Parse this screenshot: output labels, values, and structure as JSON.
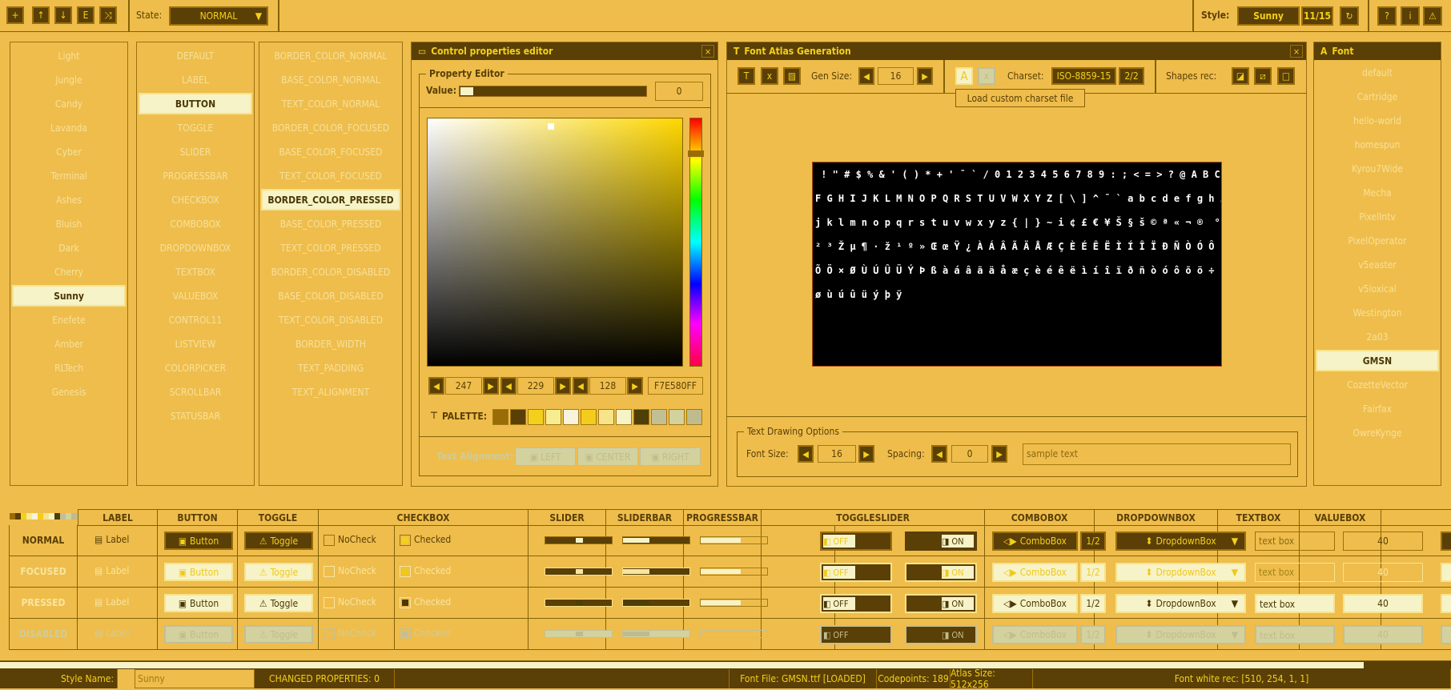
{
  "toolbar": {
    "icons": [
      "new-file-icon",
      "load-file-icon",
      "save-file-icon",
      "export-file-icon",
      "random-icon"
    ],
    "state_label": "State:",
    "state_value": "NORMAL",
    "style_label": "Style:",
    "style_value": "Sunny",
    "style_index": "11/15",
    "right_icons": [
      "help-icon",
      "info-icon",
      "warning-icon"
    ]
  },
  "styles": {
    "items": [
      "Light",
      "Jungle",
      "Candy",
      "Lavanda",
      "Cyber",
      "Terminal",
      "Ashes",
      "Bluish",
      "Dark",
      "Cherry",
      "Sunny",
      "Enefete",
      "Amber",
      "RLTech",
      "Genesis"
    ],
    "selected": 10
  },
  "controls": {
    "items": [
      "DEFAULT",
      "LABEL",
      "BUTTON",
      "TOGGLE",
      "SLIDER",
      "PROGRESSBAR",
      "CHECKBOX",
      "COMBOBOX",
      "DROPDOWNBOX",
      "TEXTBOX",
      "VALUEBOX",
      "CONTROL11",
      "LISTVIEW",
      "COLORPICKER",
      "SCROLLBAR",
      "STATUSBAR"
    ],
    "selected": 2
  },
  "properties": {
    "items": [
      "BORDER_COLOR_NORMAL",
      "BASE_COLOR_NORMAL",
      "TEXT_COLOR_NORMAL",
      "BORDER_COLOR_FOCUSED",
      "BASE_COLOR_FOCUSED",
      "TEXT_COLOR_FOCUSED",
      "BORDER_COLOR_PRESSED",
      "BASE_COLOR_PRESSED",
      "TEXT_COLOR_PRESSED",
      "BORDER_COLOR_DISABLED",
      "BASE_COLOR_DISABLED",
      "TEXT_COLOR_DISABLED",
      "BORDER_WIDTH",
      "TEXT_PADDING",
      "TEXT_ALIGNMENT"
    ],
    "selected": 6
  },
  "editor": {
    "title": "Control properties editor",
    "group": "Property Editor",
    "value_label": "Value:",
    "value": "0",
    "value_fraction": 0,
    "hue_color": "#ffd700",
    "r": "247",
    "g": "229",
    "b": "128",
    "hex": "F7E580FF",
    "palette_label": "PALETTE:",
    "palette": [
      "#9a6c08",
      "#5a3f06",
      "#f4d01c",
      "#f7ed90",
      "#f7f3dc",
      "#f4cc1c",
      "#f7e48a",
      "#f7f3c8",
      "#4e3e08",
      "#c2bf96",
      "#d3d19e",
      "#bfbb8e"
    ],
    "align_label": "Text Alignment:",
    "align_left": "LEFT",
    "align_center": "CENTER",
    "align_right": "RIGHT"
  },
  "atlas": {
    "title": "Font Atlas Generation",
    "gen_size_label": "Gen Size:",
    "gen_size": "16",
    "charset_label": "Charset:",
    "charset": "ISO-8859-15",
    "charset_page": "2/2",
    "shapes_label": "Shapes rec:",
    "tooltip": "Load custom charset file",
    "glyph_lines": [
      " ! \" # $ % & ' ( ) * + ' ¯ ` / 0 1 2 3 4 5 6 7 8 9 : ; < = > ? @ A B C D E",
      "F G H I J K L M N O P Q R S T U V W X Y Z [ \\ ] ^ ¯ ` a b c d e f g h i",
      "j k l m n o p q r s t u v w x y z { | } ~ i ¢ £ € ¥ Š § š © ª « ¬ ®  ° ±",
      "² ³ Ž µ ¶ · ž ¹ º » Œ œ Ÿ ¿ À Á Â Ã Ä Å Æ Ç È É Ê Ë Ì Í Î Ï Ð Ñ Ò Ó Ô",
      "Õ Ö × Ø Ù Ú Û Ü Ý Þ ß à á â ã ä å æ ç è é ê ë ì í î ï ð ñ ò ó ô õ ö ÷",
      "ø ù ú û ü ý þ ÿ"
    ],
    "group": "Text Drawing Options",
    "font_size_label": "Font Size:",
    "font_size": "16",
    "spacing_label": "Spacing:",
    "spacing": "0",
    "sample_text": "sample text"
  },
  "fonts": {
    "title": "Font",
    "items": [
      "default",
      "Cartridge",
      "hello-world",
      "homespun",
      "Kyrou7Wide",
      "Mecha",
      "PixelIntv",
      "PixelOperator",
      "v5easter",
      "v5loxical",
      "Westington",
      "2a03",
      "GMSN",
      "CozetteVector",
      "Fairfax",
      "OwreKynge"
    ],
    "selected": 12
  },
  "table": {
    "headers": [
      "LABEL",
      "BUTTON",
      "TOGGLE",
      "CHECKBOX",
      "SLIDER",
      "SLIDERBAR",
      "PROGRESSBAR",
      "TOGGLESLIDER",
      "COMBOBOX",
      "DROPDOWNBOX",
      "TEXTBOX",
      "VALUEBOX"
    ],
    "states": [
      "NORMAL",
      "FOCUSED",
      "PRESSED",
      "DISABLED"
    ],
    "label": "Label",
    "button": "Button",
    "toggle": "Toggle",
    "nocheck": "NoCheck",
    "checked": "Checked",
    "off": "OFF",
    "on": "ON",
    "combo": "ComboBox",
    "combo_page": "1/2",
    "dropdown": "DropdownBox",
    "textbox": "text box",
    "valuebox": "40",
    "slider_value": 0.5,
    "sliderbar_value": 0.4,
    "progress_value": 0.6
  },
  "scroll": {
    "position": 0.94
  },
  "status": {
    "style_name_label": "Style Name:",
    "style_name": "Sunny",
    "changed": "CHANGED PROPERTIES: 0",
    "font_file": "Font File: GMSN.ttf [LOADED]",
    "codepoints": "Codepoints: 189",
    "atlas_size": "Atlas Size: 512x256",
    "white_rec": "Font white rec: [510, 254, 1, 1]"
  }
}
